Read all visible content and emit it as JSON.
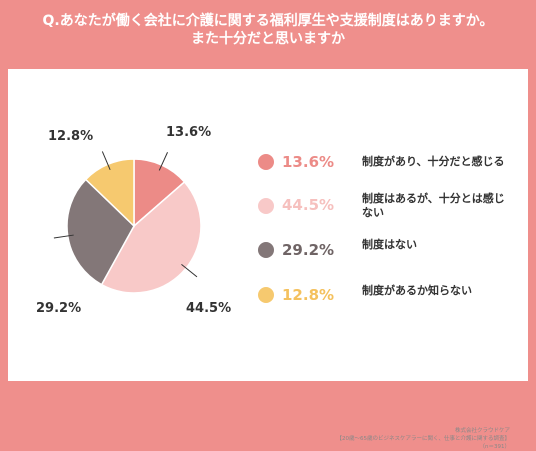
{
  "title": {
    "line1": "Q.あなたが働く会社に介護に関する福利厚生や支援制度はありますか。",
    "line2": "また十分だと思いますか"
  },
  "colors": {
    "background": "#ef8f8c",
    "panel": "#ffffff"
  },
  "chart_data": {
    "type": "pie",
    "slices": [
      {
        "label": "制度があり、十分だと感じる",
        "value": 13.6,
        "display": "13.6%",
        "color": "#ec8b87",
        "legend_text_color": "#ec8b87"
      },
      {
        "label": "制度はあるが、十分とは感じない",
        "value": 44.5,
        "display": "44.5%",
        "color": "#f8c9c8",
        "legend_text_color": "#f6c0be"
      },
      {
        "label": "制度はない",
        "value": 29.2,
        "display": "29.2%",
        "color": "#837778",
        "legend_text_color": "#6f6465"
      },
      {
        "label": "制度があるか知らない",
        "value": 12.8,
        "display": "12.8%",
        "color": "#f6c96f",
        "legend_text_color": "#f4c15e"
      }
    ]
  },
  "source": {
    "line1": "株式会社クラウドケア",
    "line2": "【20歳～65歳のビジネスケアラーに聞く、仕事と介護に関する調査】",
    "line3": "（n＝391）"
  }
}
